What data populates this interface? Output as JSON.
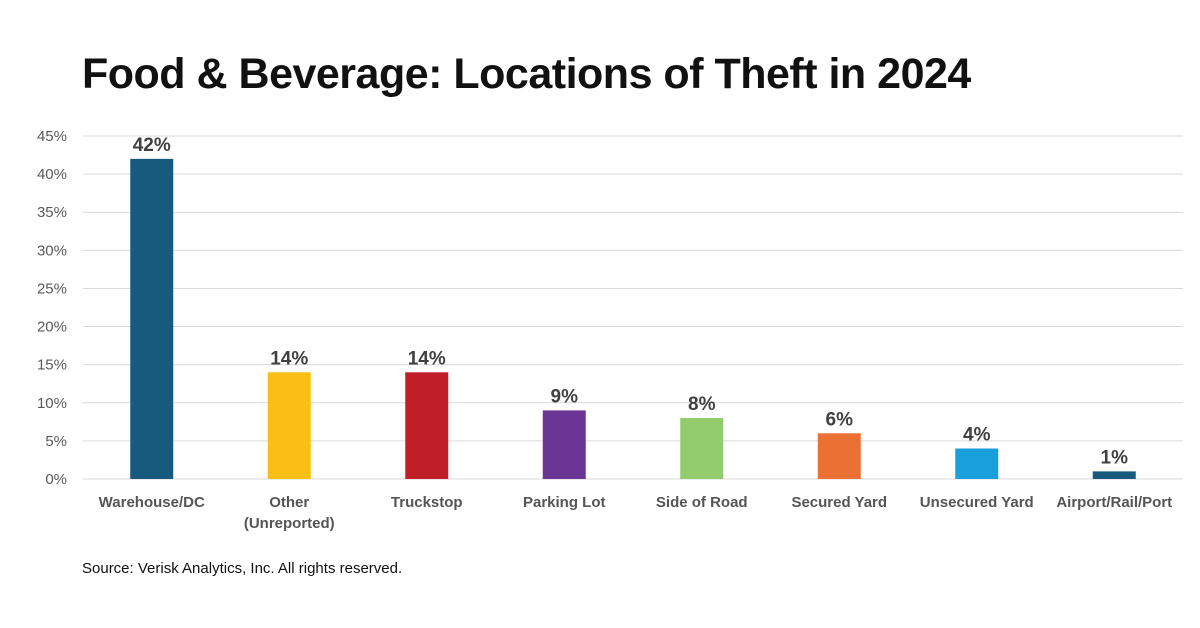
{
  "chart_data": {
    "type": "bar",
    "title": "Food & Beverage: Locations of Theft in 2024",
    "categories": [
      [
        "Warehouse/DC"
      ],
      [
        "Other",
        "(Unreported)"
      ],
      [
        "Truckstop"
      ],
      [
        "Parking Lot"
      ],
      [
        "Side of Road"
      ],
      [
        "Secured Yard"
      ],
      [
        "Unsecured Yard"
      ],
      [
        "Airport/Rail/Port"
      ]
    ],
    "values": [
      42,
      14,
      14,
      9,
      8,
      6,
      4,
      1
    ],
    "data_labels": [
      "42%",
      "14%",
      "14%",
      "9%",
      "8%",
      "6%",
      "4%",
      "1%"
    ],
    "colors": [
      "#175a7d",
      "#fbbe14",
      "#c01f28",
      "#6a3594",
      "#93cc6f",
      "#ea7133",
      "#199fdb",
      "#175a7d"
    ],
    "yticks": [
      "0%",
      "5%",
      "10%",
      "15%",
      "20%",
      "25%",
      "30%",
      "35%",
      "40%",
      "45%"
    ],
    "ylim": [
      0,
      45
    ],
    "xlabel": "",
    "ylabel": "",
    "grid": true,
    "legend": "none"
  },
  "source": "Source: Verisk Analytics, Inc. All rights reserved."
}
